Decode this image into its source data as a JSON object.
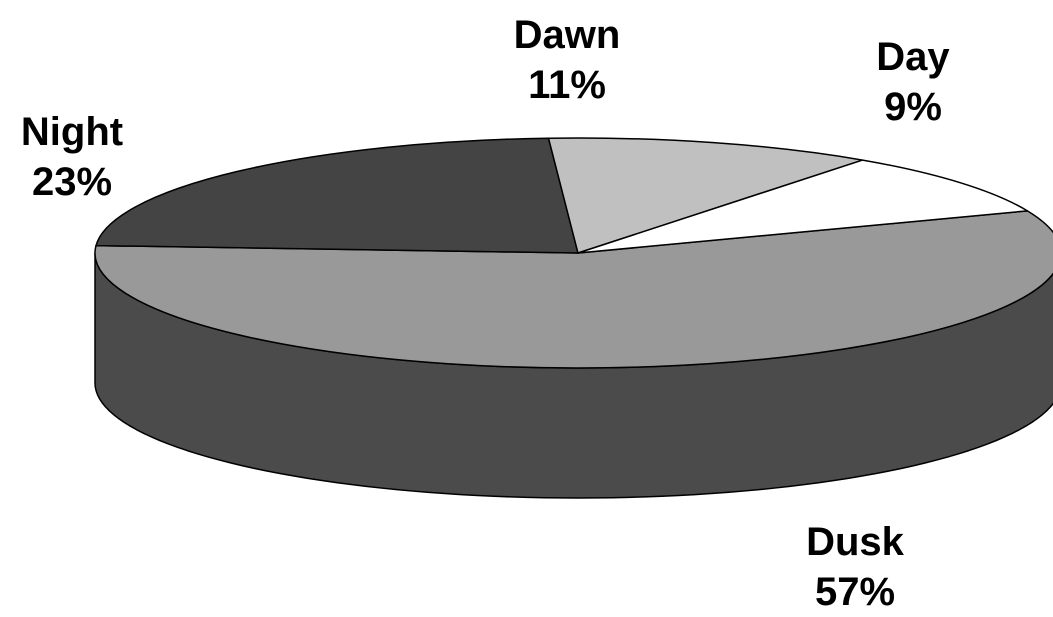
{
  "chart_data": {
    "type": "pie",
    "style": "3d",
    "title": "",
    "slices": [
      {
        "label": "Dusk",
        "value": 57,
        "display": "57%",
        "color": "#999999",
        "side_color": "#4b4b4b"
      },
      {
        "label": "Night",
        "value": 23,
        "display": "23%",
        "color": "#444444",
        "side_color": "#1a1a1a"
      },
      {
        "label": "Dawn",
        "value": 11,
        "display": "11%",
        "color": "#c0c0c0",
        "side_color": "#9a9a9a"
      },
      {
        "label": "Day",
        "value": 9,
        "display": "9%",
        "color": "#ffffff",
        "side_color": "#d8d8d8"
      }
    ]
  }
}
